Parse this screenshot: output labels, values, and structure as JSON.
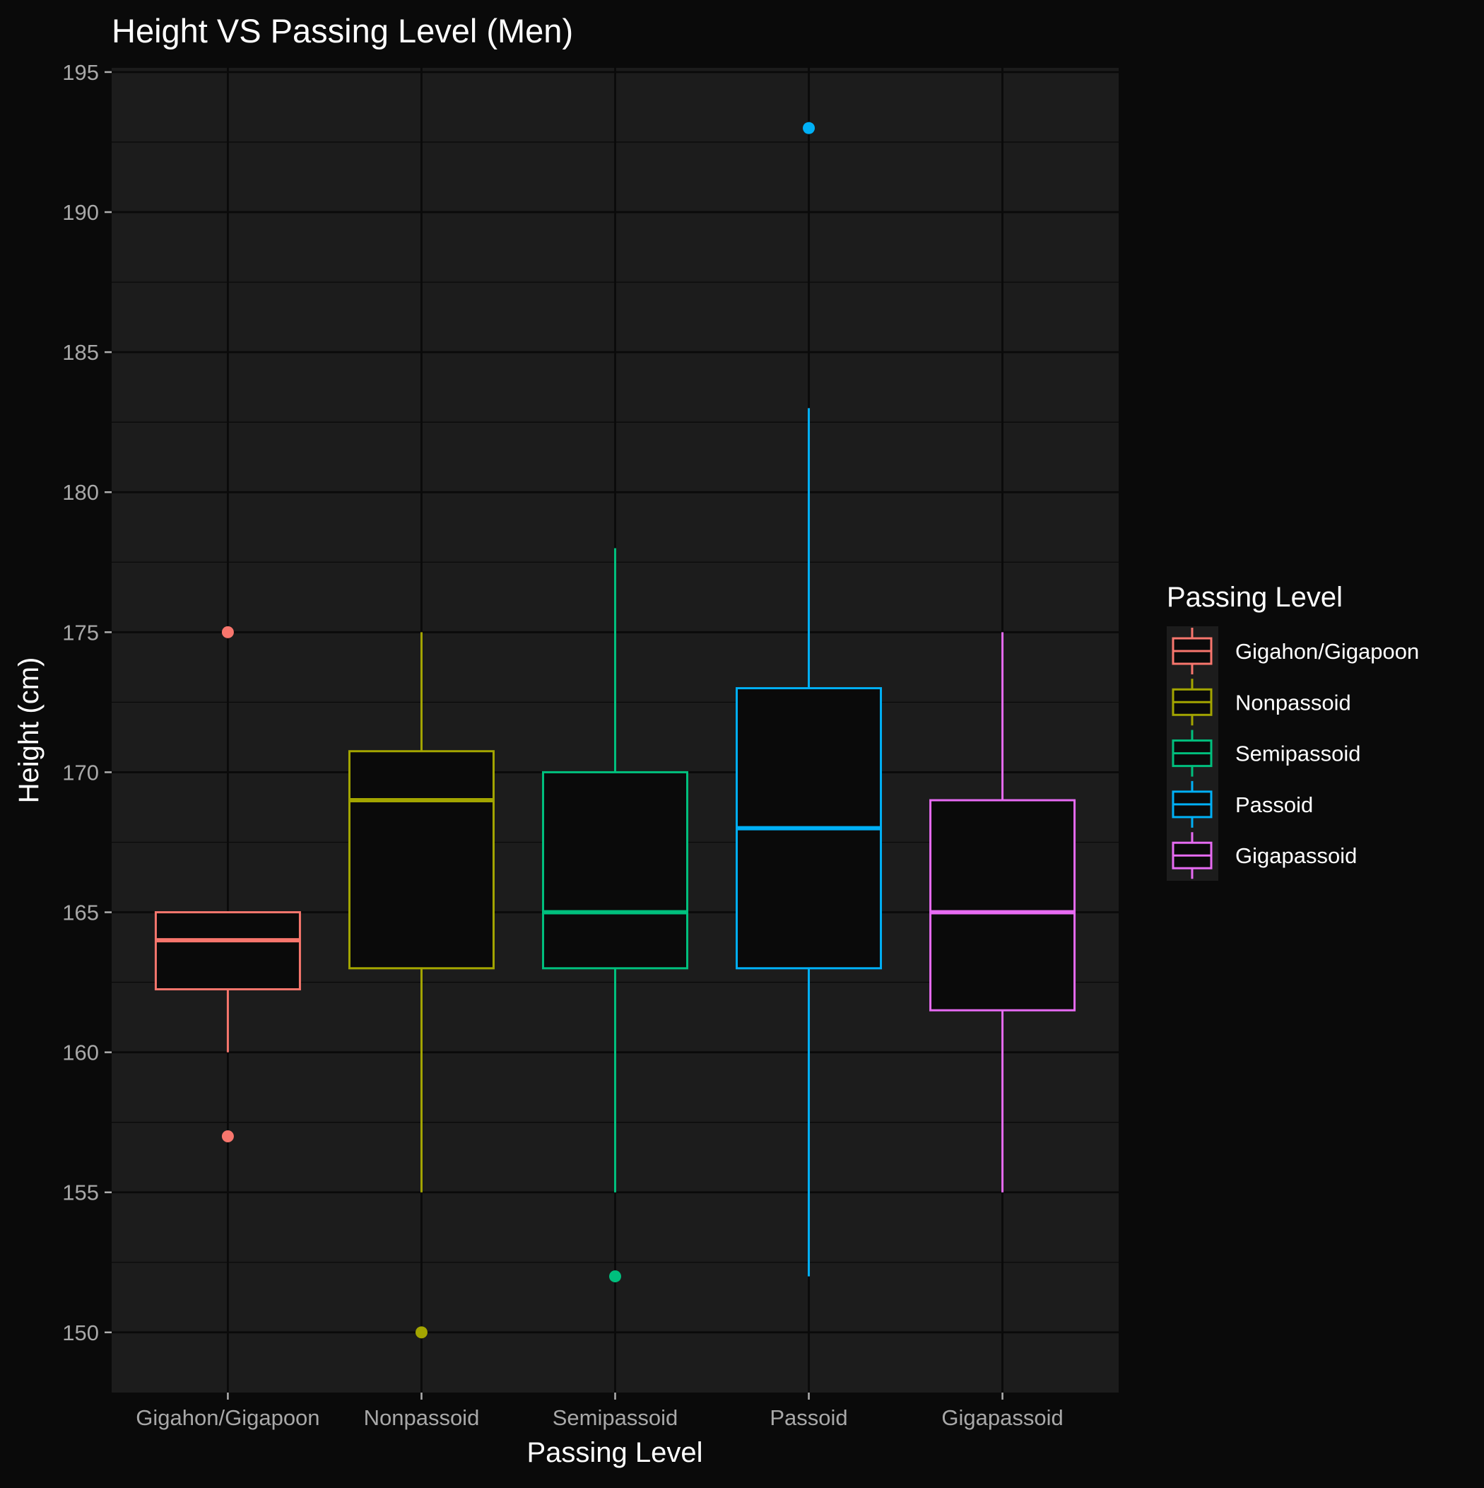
{
  "chart_data": {
    "type": "box",
    "title": "Height VS Passing Level (Men)",
    "xlabel": "Passing Level",
    "ylabel": "Height (cm)",
    "ylim": [
      147.85,
      195.15
    ],
    "yticks": [
      150,
      155,
      160,
      165,
      170,
      175,
      180,
      185,
      190,
      195
    ],
    "grid": true,
    "legend": {
      "title": "Passing Level",
      "placement": "right"
    },
    "categories": [
      "Gigahon/Gigapoon",
      "Nonpassoid",
      "Semipassoid",
      "Passoid",
      "Gigapassoid"
    ],
    "series": [
      {
        "name": "Gigahon/Gigapoon",
        "color": "#F8766D",
        "q1": 162.25,
        "median": 164,
        "q3": 165,
        "whisker_low": 160,
        "whisker_high": 165,
        "outliers": [
          175,
          157
        ]
      },
      {
        "name": "Nonpassoid",
        "color": "#A3A500",
        "q1": 163,
        "median": 169,
        "q3": 170.75,
        "whisker_low": 155,
        "whisker_high": 175,
        "outliers": [
          150
        ]
      },
      {
        "name": "Semipassoid",
        "color": "#00BF7D",
        "q1": 163,
        "median": 165,
        "q3": 170,
        "whisker_low": 155,
        "whisker_high": 178,
        "outliers": [
          152
        ]
      },
      {
        "name": "Passoid",
        "color": "#00B0F6",
        "q1": 163,
        "median": 168,
        "q3": 173,
        "whisker_low": 152,
        "whisker_high": 183,
        "outliers": [
          193
        ]
      },
      {
        "name": "Gigapassoid",
        "color": "#E76BF3",
        "q1": 161.5,
        "median": 165,
        "q3": 169,
        "whisker_low": 155,
        "whisker_high": 175,
        "outliers": []
      }
    ]
  }
}
